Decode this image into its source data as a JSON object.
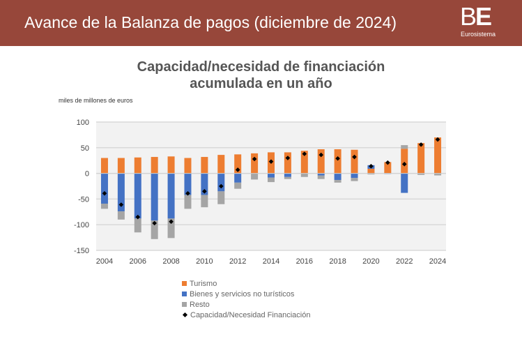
{
  "header": {
    "title": "Avance de la Balanza de pagos (diciembre de 2024)",
    "logo_text": "BE",
    "logo_subtitle": "Eurosistema"
  },
  "chart_data": {
    "type": "bar",
    "stacked": true,
    "title_line1": "Capacidad/necesidad de financiación",
    "title_line2": "acumulada en un año",
    "ylabel": "miles de millones de euros",
    "ylim": [
      -150,
      100
    ],
    "yticks": [
      100,
      50,
      0,
      -50,
      -100,
      -150
    ],
    "grid": true,
    "legend_position": "bottom",
    "categories": [
      2004,
      2005,
      2006,
      2007,
      2008,
      2009,
      2010,
      2011,
      2012,
      2013,
      2014,
      2015,
      2016,
      2017,
      2018,
      2019,
      2020,
      2021,
      2022,
      2023,
      2024
    ],
    "xtick_labels": [
      "2004",
      "2006",
      "2008",
      "2010",
      "2012",
      "2014",
      "2016",
      "2018",
      "2020",
      "2022",
      "2024"
    ],
    "series": [
      {
        "name": "Turismo",
        "kind": "bar",
        "color": "#ed7d31",
        "values": [
          30,
          30,
          31,
          32,
          33,
          30,
          32,
          36,
          37,
          39,
          41,
          41,
          44,
          47,
          47,
          46,
          9,
          22,
          48,
          59,
          70
        ]
      },
      {
        "name": "Bienes y servicios no turísticos",
        "kind": "bar",
        "color": "#4472c4",
        "values": [
          -59,
          -74,
          -88,
          -92,
          -88,
          -42,
          -42,
          -35,
          -18,
          0,
          -8,
          -7,
          0,
          -4,
          -13,
          -9,
          7,
          -1,
          -38,
          0,
          0
        ]
      },
      {
        "name": "Resto",
        "kind": "bar",
        "color": "#a5a5a5",
        "values": [
          -10,
          -16,
          -27,
          -36,
          -38,
          -27,
          -24,
          -25,
          -12,
          -12,
          -9,
          -4,
          -7,
          -7,
          -5,
          -6,
          -2,
          0,
          7,
          -3,
          -4
        ]
      },
      {
        "name": "Capacidad/Necesidad Financiación",
        "kind": "marker",
        "color": "#000000",
        "values": [
          -39,
          -61,
          -85,
          -97,
          -94,
          -39,
          -35,
          -25,
          7,
          28,
          23,
          30,
          38,
          36,
          29,
          32,
          14,
          21,
          18,
          56,
          66
        ]
      }
    ]
  }
}
